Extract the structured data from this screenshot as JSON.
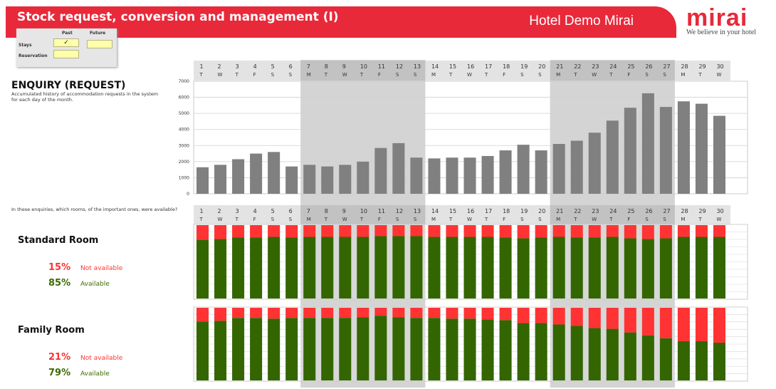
{
  "header": {
    "title": "Stock request, conversion and management (I)",
    "hotel": "Hotel Demo Mirai"
  },
  "logo": {
    "word": "mirai",
    "tagline": "We believe in your hotel"
  },
  "filter": {
    "col_past": "Past",
    "col_future": "Future",
    "row_stays": "Stays",
    "row_reservation": "Reservation",
    "stays_past_value": "✓"
  },
  "enquiry": {
    "title": "ENQUIRY (REQUEST)",
    "description": "Accumulated history of accommodation requests in the system for each day of the month."
  },
  "availability": {
    "question": "In these enquiries, which rooms, of the important ones, were available?"
  },
  "standard_room": {
    "name": "Standard Room",
    "not_available_pct": "15%",
    "not_available_label": "Not available",
    "available_pct": "85%",
    "available_label": "Available"
  },
  "family_room": {
    "name": "Family Room",
    "not_available_pct": "21%",
    "not_available_label": "Not available",
    "available_pct": "79%",
    "available_label": "Available"
  },
  "colors": {
    "brand": "#e8293a",
    "bar": "#808080",
    "available": "#336600",
    "not_available": "#ff3333",
    "weekend_shade": "#c8c8c8"
  },
  "chart_data": [
    {
      "type": "bar",
      "days": [
        1,
        2,
        3,
        4,
        5,
        6,
        7,
        8,
        9,
        10,
        11,
        12,
        13,
        14,
        15,
        16,
        17,
        18,
        19,
        20,
        21,
        22,
        23,
        24,
        25,
        26,
        27,
        28,
        29,
        30
      ],
      "weekdays": [
        "T",
        "W",
        "T",
        "F",
        "S",
        "S",
        "M",
        "T",
        "W",
        "T",
        "F",
        "S",
        "S",
        "M",
        "T",
        "W",
        "T",
        "F",
        "S",
        "S",
        "M",
        "T",
        "W",
        "T",
        "F",
        "S",
        "S",
        "M",
        "T",
        "W"
      ],
      "values": [
        1650,
        1800,
        2150,
        2500,
        2600,
        1700,
        1800,
        1700,
        1800,
        2000,
        2850,
        3150,
        2250,
        2200,
        2250,
        2250,
        2350,
        2700,
        3050,
        2700,
        3100,
        3300,
        3800,
        4550,
        5350,
        6250,
        5400,
        5750,
        5600,
        4850
      ],
      "yticks": [
        0,
        1000,
        2000,
        3000,
        4000,
        5000,
        6000,
        7000
      ],
      "ylim": [
        0,
        7000
      ],
      "shaded_days": [
        [
          7,
          13
        ],
        [
          21,
          27
        ]
      ],
      "grid": true
    },
    {
      "type": "bar",
      "stacked": true,
      "series_name": "Standard Room",
      "available_pct": [
        80,
        81,
        83,
        83,
        84,
        83,
        84,
        84,
        84,
        84,
        85,
        85,
        85,
        84,
        84,
        84,
        84,
        83,
        82,
        83,
        84,
        83,
        83,
        84,
        82,
        81,
        82,
        84,
        84,
        84
      ],
      "not_available_pct": [
        20,
        19,
        17,
        17,
        16,
        17,
        16,
        16,
        16,
        16,
        15,
        15,
        15,
        16,
        16,
        16,
        16,
        17,
        18,
        17,
        16,
        17,
        17,
        16,
        18,
        19,
        18,
        16,
        16,
        16
      ]
    },
    {
      "type": "bar",
      "stacked": true,
      "series_name": "Family Room",
      "available_pct": [
        81,
        82,
        86,
        86,
        85,
        86,
        86,
        86,
        86,
        87,
        89,
        87,
        86,
        86,
        85,
        85,
        84,
        83,
        79,
        79,
        77,
        75,
        72,
        71,
        66,
        62,
        58,
        54,
        54,
        52
      ],
      "not_available_pct": [
        19,
        18,
        14,
        14,
        15,
        14,
        14,
        14,
        14,
        13,
        11,
        13,
        14,
        14,
        15,
        15,
        16,
        17,
        21,
        21,
        23,
        25,
        28,
        29,
        34,
        38,
        42,
        46,
        46,
        48
      ]
    }
  ]
}
